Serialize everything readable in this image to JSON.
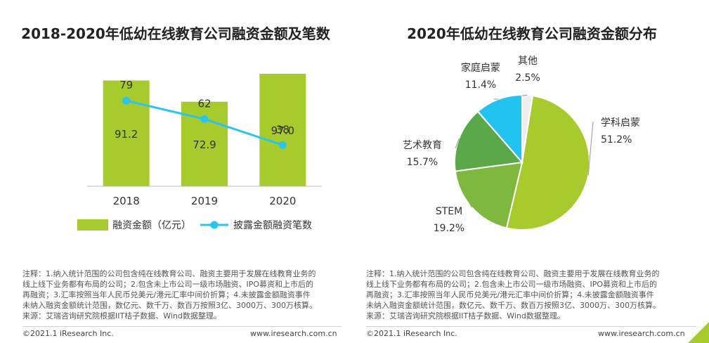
{
  "chart_data": [
    {
      "type": "bar",
      "title": "2018-2020年低幼在线教育公司融资金额及笔数",
      "categories": [
        "2018",
        "2019",
        "2020"
      ],
      "series": [
        {
          "name": "融资金额（亿元）",
          "type": "bar",
          "values": [
            91.2,
            72.9,
            97.0
          ],
          "labels": [
            "91.2",
            "72.9",
            "97.0"
          ]
        },
        {
          "name": "披露金额融资笔数",
          "type": "line",
          "values": [
            79,
            62,
            38
          ],
          "labels": [
            "79",
            "62",
            "38"
          ]
        }
      ],
      "xlabel": "",
      "ylabel": "",
      "ylim": [
        0,
        100
      ],
      "line_ylim": [
        0,
        120
      ],
      "legend": "bottom"
    },
    {
      "type": "pie",
      "title": "2020年低幼在线教育公司融资金额分布",
      "slices": [
        {
          "label": "学科启蒙",
          "value": 51.2,
          "text": "51.2%"
        },
        {
          "label": "STEM",
          "value": 19.2,
          "text": "19.2%"
        },
        {
          "label": "艺术教育",
          "value": 15.7,
          "text": "15.7%"
        },
        {
          "label": "家庭启蒙",
          "value": 11.4,
          "text": "11.4%"
        },
        {
          "label": "其他",
          "value": 2.5,
          "text": "2.5%"
        }
      ]
    }
  ],
  "colors": {
    "bar": "#a7ca2d",
    "line": "#2bc4ee",
    "axis": "#bbbbbb",
    "pie": [
      "#a7ca2d",
      "#7fb83f",
      "#5aa848",
      "#22c3ee",
      "#eeeeee"
    ]
  },
  "notes": {
    "line1": "注释：1.纳入统计范围的公司包含纯在线教育公司、融资主要用于发展在线教育业务的",
    "line2": "线上线下业务都有布局的公司；2.包含未上市公司一级市场融资、IPO募资和上市后的",
    "line3": "再融资；3.汇率按照当年人民币兑美元/港元汇率中间价折算；4.未披露金额融资事件",
    "line4": "未纳入融资金额统计范围，数亿元、数千万、数百万按照3亿、3000万、300万核算。",
    "source": "来源：艾瑞咨询研究院根据IIT桔子数据、Wind数据整理。"
  },
  "right_notes": {
    "line1": "注释：1.纳入统计范围的公司包含纯在线教育公司、融资主要用于发展在线教育业务的",
    "line2": "线上线下业务都有布局的公司；2.包含未上市公司一级市场融资、IPO募资和上市后的",
    "line3": "再融资；3.汇率按照当年人民币兑美元/港元汇率中间价折算；4.未披露金额融资事件",
    "line4": "未纳入融资金额统计范围，数亿元、数千万、数百万按照3亿、3000万、300万核算。",
    "source": "来源：艾瑞咨询研究院根据IIT桔子数据、Wind数据整理。"
  },
  "footer": {
    "copyright": "©2021.1 iResearch Inc.",
    "url": "www.iresearch.com.cn",
    "copyright_right": "©2021.1 iResearch Inc.",
    "url_right": "www.iresearch.com.cn"
  }
}
